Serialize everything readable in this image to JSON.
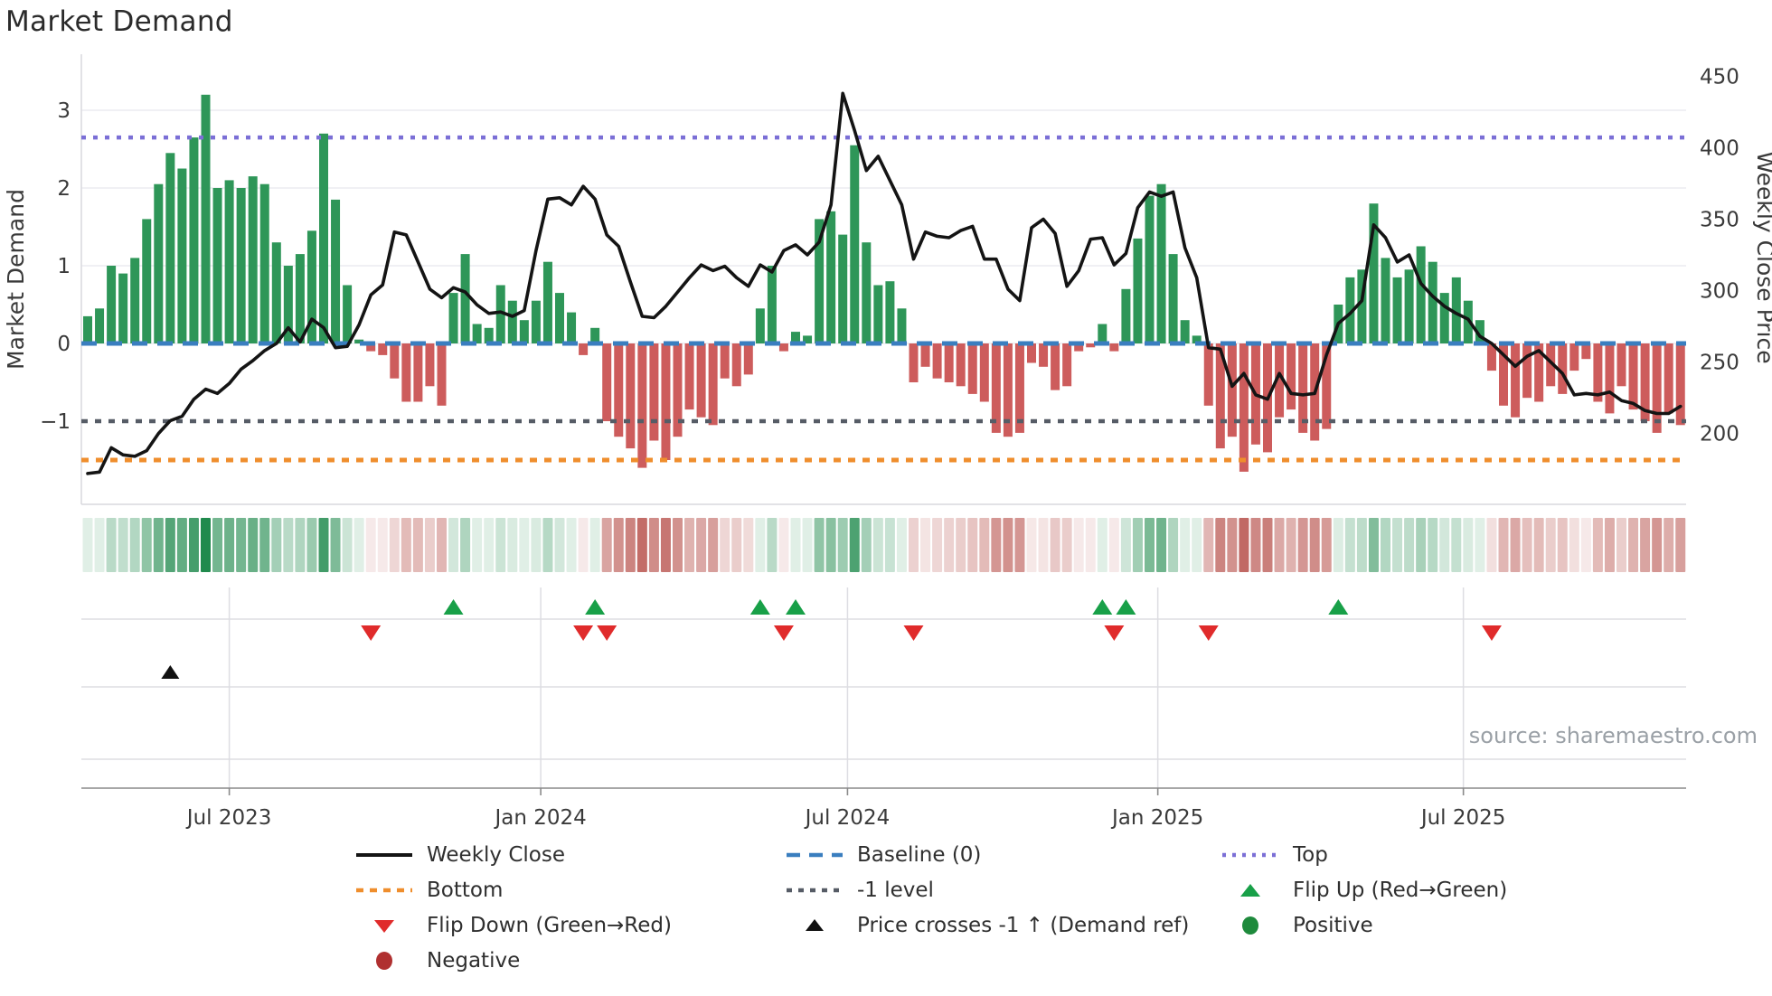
{
  "title": "Market Demand",
  "source_note": "source: sharemaestro.com",
  "colors": {
    "positive_bar": "#2e9658",
    "negative_bar": "#cd5c5c",
    "price_line": "#141414",
    "baseline": "#3a7ebf",
    "top_line": "#7b6fd6",
    "bottom_line": "#ef8e2d",
    "minus_one_line": "#565c66",
    "flip_up_marker": "#18a048",
    "flip_down_marker": "#e02b2b",
    "price_cross_marker": "#111111",
    "positive_dot": "#1e8a3c",
    "negative_dot": "#b03030",
    "grid": "#ececf1",
    "panel2_grid": "#dddde2",
    "axis_text": "#3a3a3a",
    "spine": "#d9d9de",
    "bottom_spine": "#8a8a8a",
    "heat_green_base": [
      32,
      138,
      77
    ],
    "heat_red_base": [
      191,
      100,
      95
    ]
  },
  "chart_data": {
    "type": "combo",
    "title": "Market Demand",
    "left_axis": {
      "label": "Market Demand",
      "ticks": [
        -1,
        0,
        1,
        2,
        3
      ],
      "range": [
        -2.07,
        3.72
      ]
    },
    "right_axis": {
      "label": "Weekly Close Price",
      "ticks": [
        200,
        250,
        300,
        350,
        400,
        450
      ]
    },
    "x_axis": {
      "tick_labels": [
        "Jul 2023",
        "Jan 2024",
        "Jul 2024",
        "Jan 2025",
        "Jul 2025"
      ],
      "tick_week_index": [
        12.0,
        38.4,
        64.4,
        90.7,
        116.6
      ]
    },
    "reference_lines": {
      "top": 2.65,
      "baseline": 0,
      "minus_one": -1,
      "bottom": -1.5
    },
    "grid": true,
    "legend_position": "bottom",
    "series": [
      {
        "name": "Market Demand",
        "type": "bar",
        "axis": "left",
        "values": [
          0.35,
          0.45,
          1.0,
          0.9,
          1.1,
          1.6,
          2.05,
          2.45,
          2.25,
          2.65,
          3.2,
          2.0,
          2.1,
          2.0,
          2.15,
          2.05,
          1.3,
          1.0,
          1.15,
          1.45,
          2.7,
          1.85,
          0.75,
          0.05,
          -0.1,
          -0.15,
          -0.45,
          -0.75,
          -0.75,
          -0.55,
          -0.8,
          0.65,
          1.15,
          0.25,
          0.2,
          0.75,
          0.55,
          0.3,
          0.55,
          1.05,
          0.65,
          0.4,
          -0.15,
          0.2,
          -1.0,
          -1.2,
          -1.35,
          -1.6,
          -1.25,
          -1.5,
          -1.2,
          -0.85,
          -0.95,
          -1.05,
          -0.45,
          -0.55,
          -0.4,
          0.45,
          1.0,
          -0.1,
          0.15,
          0.1,
          1.6,
          1.7,
          1.4,
          2.55,
          1.3,
          0.75,
          0.8,
          0.45,
          -0.5,
          -0.3,
          -0.45,
          -0.5,
          -0.55,
          -0.65,
          -0.75,
          -1.15,
          -1.2,
          -1.15,
          -0.25,
          -0.3,
          -0.6,
          -0.55,
          -0.1,
          -0.05,
          0.25,
          -0.1,
          0.7,
          1.35,
          1.9,
          2.05,
          1.15,
          0.3,
          0.1,
          -0.8,
          -1.35,
          -1.2,
          -1.65,
          -1.3,
          -1.4,
          -0.95,
          -0.85,
          -1.15,
          -1.25,
          -1.1,
          0.5,
          0.85,
          0.95,
          1.8,
          1.1,
          0.85,
          0.95,
          1.25,
          1.05,
          0.65,
          0.85,
          0.55,
          0.3,
          -0.35,
          -0.8,
          -0.95,
          -0.7,
          -0.75,
          -0.55,
          -0.65,
          -0.35,
          -0.2,
          -0.75,
          -0.9,
          -0.55,
          -0.85,
          -1.0,
          -1.15,
          -0.9,
          -1.05
        ]
      },
      {
        "name": "Weekly Close",
        "type": "line",
        "axis": "right",
        "values": [
          172,
          173,
          190,
          185,
          184,
          188,
          200,
          209,
          212,
          224,
          231,
          228,
          235,
          245,
          251,
          258,
          263,
          274,
          264,
          280,
          274,
          260,
          261,
          276,
          297,
          304,
          341,
          339,
          320,
          301,
          295,
          302,
          299,
          290,
          284,
          285,
          282,
          286,
          328,
          364,
          365,
          360,
          373,
          364,
          339,
          331,
          306,
          282,
          281,
          289,
          299,
          309,
          318,
          314,
          317,
          309,
          303,
          318,
          313,
          328,
          332,
          325,
          334,
          360,
          438,
          412,
          384,
          394,
          377,
          360,
          322,
          341,
          338,
          337,
          342,
          345,
          322,
          322,
          301,
          293,
          344,
          350,
          340,
          303,
          314,
          336,
          337,
          318,
          326,
          358,
          369,
          366,
          369,
          330,
          309,
          260,
          259,
          233,
          242,
          227,
          224,
          242,
          228,
          227,
          228,
          255,
          277,
          284,
          293,
          346,
          337,
          320,
          325,
          305,
          296,
          289,
          284,
          280,
          268,
          263,
          255,
          247,
          254,
          258,
          250,
          242,
          227,
          228,
          227,
          229,
          223,
          221,
          216,
          214,
          214,
          219
        ]
      }
    ],
    "heatmap_strip": "derived from bar values: green shades for positive weeks, red shades for negative weeks",
    "markers": {
      "flip_up_weeks": [
        31,
        43,
        57,
        60,
        86,
        88,
        106
      ],
      "flip_down_weeks": [
        24,
        42,
        44,
        59,
        70,
        87,
        95,
        119
      ],
      "price_cross_weeks": [
        7
      ]
    }
  },
  "legend": {
    "columns": [
      {
        "items": [
          {
            "label": "Weekly Close",
            "swatch": "line-black"
          },
          {
            "label": "Bottom",
            "swatch": "dash-orange"
          },
          {
            "label": "Flip Down (Green→Red)",
            "swatch": "tri-down-red"
          },
          {
            "label": "Negative",
            "swatch": "circle-red"
          }
        ]
      },
      {
        "items": [
          {
            "label": "Baseline (0)",
            "swatch": "dash-blue"
          },
          {
            "label": "-1 level",
            "swatch": "dash-gray"
          },
          {
            "label": "Price crosses -1 ↑ (Demand ref)",
            "swatch": "tri-up-black"
          }
        ]
      },
      {
        "items": [
          {
            "label": "Top",
            "swatch": "dash-purple"
          },
          {
            "label": "Flip Up (Red→Green)",
            "swatch": "tri-up-green"
          },
          {
            "label": "Positive",
            "swatch": "circle-green"
          }
        ]
      }
    ]
  }
}
